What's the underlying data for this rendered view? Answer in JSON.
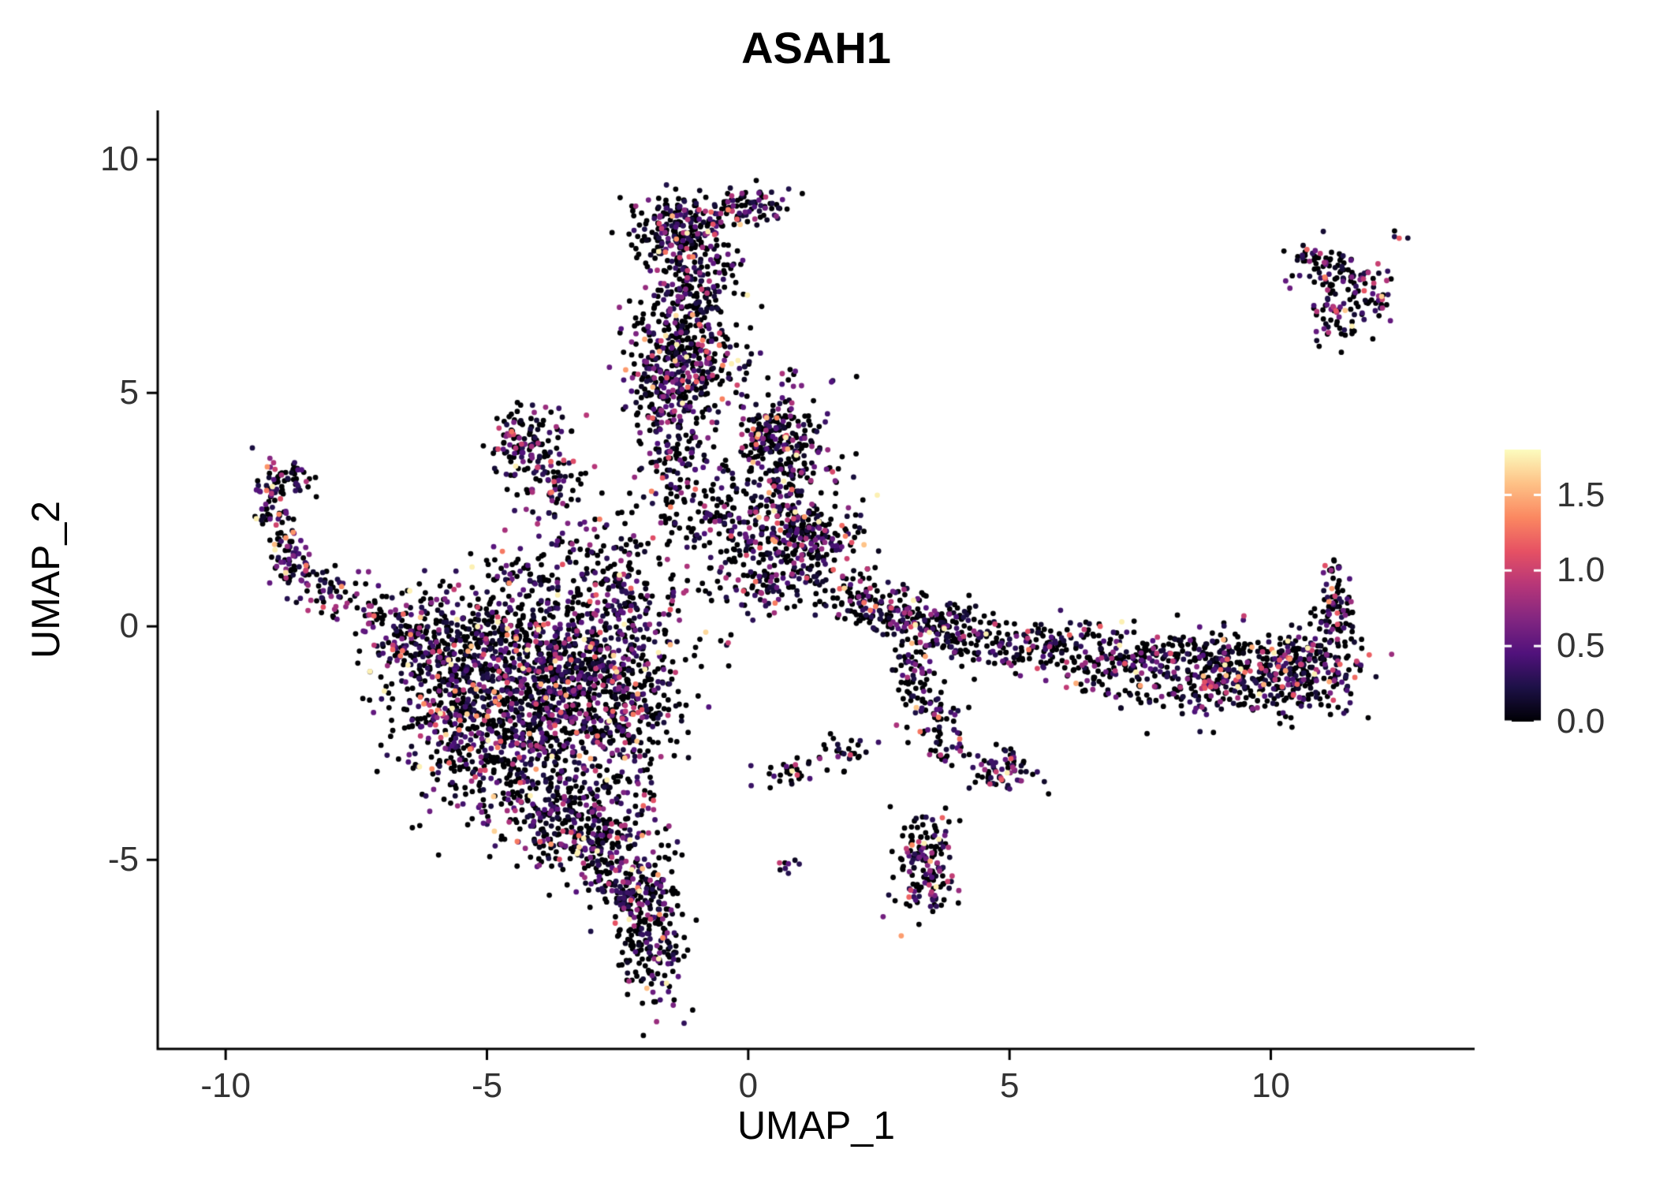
{
  "title": "ASAH1",
  "axes": {
    "x_label": "UMAP_1",
    "y_label": "UMAP_2",
    "x_tick_values": [
      -10,
      -5,
      0,
      5,
      10
    ],
    "x_tick_labels": [
      "-10",
      "-5",
      "0",
      "5",
      "10"
    ],
    "y_tick_values": [
      -5,
      0,
      5,
      10
    ],
    "y_tick_labels": [
      "-5",
      "0",
      "5",
      "10"
    ]
  },
  "colorbar": {
    "tick_values": [
      1.5,
      1.0,
      0.5,
      0.0
    ],
    "tick_labels": [
      "1.5",
      "1.0",
      "0.5",
      "0.0"
    ]
  },
  "chart_data": {
    "type": "scatter",
    "title": "ASAH1",
    "xlabel": "UMAP_1",
    "ylabel": "UMAP_2",
    "x_range": [
      -11.3,
      13.9
    ],
    "y_range": [
      -9.05,
      11.05
    ],
    "grid": false,
    "legend_position": "right",
    "color_scale": {
      "name": "magma",
      "limits": [
        0,
        1.8
      ],
      "stops": [
        "#000004",
        "#1d1147",
        "#51127c",
        "#822681",
        "#b63679",
        "#e65164",
        "#fb8861",
        "#fec287",
        "#fcfdbf"
      ]
    },
    "expression": {
      "p_zero": 0.52,
      "exp_mean": 0.5,
      "max": 1.75
    },
    "point_radius_px": 3.4,
    "seed": 123456789,
    "n_points_total": 7245,
    "clusters": [
      {
        "name": "top-blob-cap",
        "cx": -1.3,
        "cy": 8.5,
        "sdx": 0.5,
        "sdy": 0.4,
        "n": 220
      },
      {
        "name": "top-arm",
        "seg": [
          -0.8,
          8.85,
          0.65,
          9.05
        ],
        "sd": 0.18,
        "n": 90
      },
      {
        "name": "top-blob-mid",
        "cx": -1.05,
        "cy": 7.3,
        "sdx": 0.38,
        "sdy": 0.55,
        "n": 160
      },
      {
        "name": "top-blob-lower",
        "cx": -1.25,
        "cy": 5.9,
        "sdx": 0.52,
        "sdy": 0.65,
        "n": 340
      },
      {
        "name": "top-blob-base",
        "cx": -1.5,
        "cy": 4.8,
        "sdx": 0.4,
        "sdy": 0.35,
        "n": 90
      },
      {
        "name": "upper-center-sparse",
        "cx": 0.3,
        "cy": 5.1,
        "sdx": 0.6,
        "sdy": 0.45,
        "n": 30,
        "p0": 0.6
      },
      {
        "name": "center-cluster-a",
        "cx": 0.45,
        "cy": 4.25,
        "sdx": 0.42,
        "sdy": 0.3,
        "n": 110
      },
      {
        "name": "center-cluster-b",
        "cx": 0.75,
        "cy": 3.4,
        "sdx": 0.45,
        "sdy": 0.4,
        "n": 140
      },
      {
        "name": "center-dense",
        "cx": 0.9,
        "cy": 1.9,
        "sdx": 0.6,
        "sdy": 0.45,
        "n": 290
      },
      {
        "name": "center-left-col",
        "cx": -1.4,
        "cy": 3.6,
        "sdx": 0.35,
        "sdy": 0.6,
        "n": 110
      },
      {
        "name": "center-scatter",
        "cx": -0.4,
        "cy": 2.3,
        "sdx": 0.75,
        "sdy": 0.75,
        "n": 190
      },
      {
        "name": "center-low",
        "cx": 0.55,
        "cy": 0.95,
        "sdx": 0.5,
        "sdy": 0.3,
        "n": 80
      },
      {
        "name": "left-triangle",
        "cx": -4.2,
        "cy": 3.9,
        "sdx": 0.42,
        "sdy": 0.45,
        "n": 130
      },
      {
        "name": "left-triangle-tail",
        "cx": -3.7,
        "cy": 3.0,
        "sdx": 0.3,
        "sdy": 0.4,
        "n": 60
      },
      {
        "name": "left-mid-sparse",
        "cx": -4.4,
        "cy": 1.15,
        "sdx": 0.5,
        "sdy": 0.4,
        "n": 70
      },
      {
        "name": "left-arm-hook",
        "cx": -8.9,
        "cy": 3.15,
        "sdx": 0.3,
        "sdy": 0.22,
        "n": 55
      },
      {
        "name": "left-arm-upper",
        "seg": [
          -9.25,
          2.9,
          -8.7,
          1.2
        ],
        "sd": 0.22,
        "n": 90
      },
      {
        "name": "left-arm-mid",
        "seg": [
          -8.7,
          1.2,
          -7.6,
          0.6
        ],
        "sd": 0.25,
        "n": 70
      },
      {
        "name": "left-arm-lower",
        "seg": [
          -7.6,
          0.6,
          -6.6,
          -0.4
        ],
        "sd": 0.3,
        "n": 55
      },
      {
        "name": "left-sparse",
        "cx": -6.0,
        "cy": 0.6,
        "sdx": 0.5,
        "sdy": 0.35,
        "n": 30,
        "p0": 0.6
      },
      {
        "name": "main-core",
        "cx": -4.4,
        "cy": -2.3,
        "sdx": 1.0,
        "sdy": 1.0,
        "n": 880
      },
      {
        "name": "main-upper",
        "cx": -3.4,
        "cy": -0.6,
        "sdx": 0.9,
        "sdy": 0.65,
        "n": 430
      },
      {
        "name": "main-top-edge",
        "cx": -5.0,
        "cy": -0.25,
        "sdx": 0.8,
        "sdy": 0.4,
        "n": 190
      },
      {
        "name": "main-right",
        "cx": -2.5,
        "cy": -1.7,
        "sdx": 0.65,
        "sdy": 0.8,
        "n": 290
      },
      {
        "name": "main-left",
        "cx": -5.7,
        "cy": -1.4,
        "sdx": 0.55,
        "sdy": 0.6,
        "n": 190
      },
      {
        "name": "main-funnel",
        "cx": -6.3,
        "cy": -0.5,
        "sdx": 0.45,
        "sdy": 0.4,
        "n": 90
      },
      {
        "name": "main-bottom",
        "cx": -3.3,
        "cy": -4.2,
        "sdx": 0.6,
        "sdy": 0.55,
        "n": 240
      },
      {
        "name": "main-bottom-tail",
        "cx": -2.6,
        "cy": -5.0,
        "sdx": 0.4,
        "sdy": 0.45,
        "n": 120
      },
      {
        "name": "blob-to-center",
        "cx": -2.2,
        "cy": 0.4,
        "sdx": 0.7,
        "sdy": 0.7,
        "n": 140
      },
      {
        "name": "blob-upper-trail",
        "cx": -2.9,
        "cy": 1.5,
        "sdx": 0.55,
        "sdy": 0.6,
        "n": 80
      },
      {
        "name": "bottom-strip",
        "cx": -1.85,
        "cy": -6.4,
        "sdx": 0.33,
        "sdy": 0.75,
        "n": 230,
        "p0": 0.58
      },
      {
        "name": "bottom-strip-top",
        "cx": -2.3,
        "cy": -5.6,
        "sdx": 0.28,
        "sdy": 0.3,
        "n": 60
      },
      {
        "name": "band-1",
        "cx": 2.1,
        "cy": 0.6,
        "sdx": 0.3,
        "sdy": 0.25,
        "n": 70
      },
      {
        "name": "band-2",
        "cx": 2.9,
        "cy": 0.3,
        "sdx": 0.4,
        "sdy": 0.28,
        "n": 85
      },
      {
        "name": "band-3",
        "cx": 3.7,
        "cy": -0.05,
        "sdx": 0.45,
        "sdy": 0.32,
        "n": 110
      },
      {
        "name": "band-4",
        "cx": 4.6,
        "cy": -0.35,
        "sdx": 0.5,
        "sdy": 0.3,
        "n": 85,
        "p0": 0.62
      },
      {
        "name": "band-5",
        "cx": 5.8,
        "cy": -0.5,
        "sdx": 0.5,
        "sdy": 0.33,
        "n": 90,
        "p0": 0.62
      },
      {
        "name": "band-6",
        "cx": 6.8,
        "cy": -0.75,
        "sdx": 0.5,
        "sdy": 0.35,
        "n": 95,
        "p0": 0.6
      },
      {
        "name": "band-7",
        "cx": 8.2,
        "cy": -0.9,
        "sdx": 0.7,
        "sdy": 0.45,
        "n": 220
      },
      {
        "name": "band-8",
        "cx": 9.5,
        "cy": -1.0,
        "sdx": 0.7,
        "sdy": 0.45,
        "n": 260
      },
      {
        "name": "band-9",
        "cx": 10.8,
        "cy": -0.85,
        "sdx": 0.5,
        "sdy": 0.5,
        "n": 210
      },
      {
        "name": "band-tail-up",
        "seg": [
          11.3,
          -0.1,
          11.25,
          0.9
        ],
        "sd": 0.18,
        "n": 55
      },
      {
        "name": "band-tail-top",
        "cx": 11.2,
        "cy": 1.25,
        "sdx": 0.12,
        "sdy": 0.15,
        "n": 15
      },
      {
        "name": "branch-down",
        "seg": [
          3.15,
          -0.4,
          3.45,
          -1.9
        ],
        "sd": 0.2,
        "n": 70,
        "p0": 0.6
      },
      {
        "name": "branch-clump",
        "cx": 3.7,
        "cy": -2.35,
        "sdx": 0.28,
        "sdy": 0.35,
        "n": 55
      },
      {
        "name": "small-right-clump",
        "cx": 4.85,
        "cy": -3.1,
        "sdx": 0.3,
        "sdy": 0.28,
        "n": 65
      },
      {
        "name": "bottom-mid-clump",
        "cx": 3.45,
        "cy": -5.1,
        "sdx": 0.28,
        "sdy": 0.55,
        "n": 160
      },
      {
        "name": "arc-sparse",
        "seg": [
          0.35,
          -3.3,
          2.25,
          -2.6
        ],
        "sd": 0.18,
        "n": 55,
        "p0": 0.6
      },
      {
        "name": "tiny-pair",
        "cx": 0.75,
        "cy": -5.15,
        "sdx": 0.12,
        "sdy": 0.1,
        "n": 8
      },
      {
        "name": "topright-cluster-a",
        "cx": 11.0,
        "cy": 7.7,
        "sdx": 0.35,
        "sdy": 0.3,
        "n": 60
      },
      {
        "name": "topright-cluster-b",
        "cx": 11.8,
        "cy": 7.2,
        "sdx": 0.35,
        "sdy": 0.35,
        "n": 60
      },
      {
        "name": "topright-cluster-c",
        "cx": 11.35,
        "cy": 6.7,
        "sdx": 0.3,
        "sdy": 0.32,
        "n": 55
      },
      {
        "name": "topright-outlier",
        "cx": 12.5,
        "cy": 8.35,
        "sdx": 0.08,
        "sdy": 0.07,
        "n": 4
      },
      {
        "name": "stray-1",
        "cx": 1.6,
        "cy": 5.2,
        "sdx": 0.05,
        "sdy": 0.05,
        "n": 2
      },
      {
        "name": "stray-2",
        "cx": 0.0,
        "cy": 5.6,
        "sdx": 0.3,
        "sdy": 0.25,
        "n": 6
      }
    ]
  }
}
